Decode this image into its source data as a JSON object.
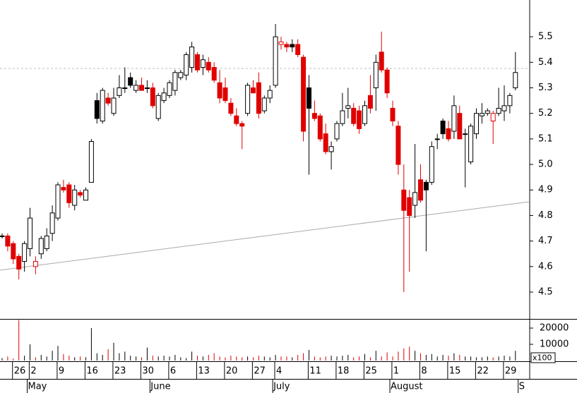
{
  "chart_data": [
    {
      "type": "candlestick",
      "ylim": [
        4.395,
        5.644
      ],
      "yticks": [
        4.5,
        4.6,
        4.7,
        4.8,
        4.9,
        {
          "value": 5,
          "label": "5.0"
        },
        5.1,
        5.2,
        5.3,
        5.4,
        5.5
      ],
      "up_color": "#000000",
      "down_color": "#e00000",
      "hline": 5.376,
      "trendline": [
        4.586,
        4.854
      ],
      "xticks": [
        {
          "value": 3,
          "label": "26"
        },
        {
          "value": 6,
          "label": "2"
        },
        {
          "value": 11,
          "label": "9"
        },
        {
          "value": 16,
          "label": "16"
        },
        {
          "value": 21,
          "label": "23"
        },
        {
          "value": 26,
          "label": "30"
        },
        {
          "value": 31,
          "label": "6"
        },
        {
          "value": 36,
          "label": "13"
        },
        {
          "value": 41,
          "label": "20"
        },
        {
          "value": 46,
          "label": "27"
        },
        {
          "value": 50,
          "label": "4"
        },
        {
          "value": 56,
          "label": "11"
        },
        {
          "value": 61,
          "label": "18"
        },
        {
          "value": 66,
          "label": "25"
        },
        {
          "value": 71,
          "label": "1"
        },
        {
          "value": 76,
          "label": "8"
        },
        {
          "value": 81,
          "label": "15"
        },
        {
          "value": 86,
          "label": "22"
        },
        {
          "value": 91,
          "label": "29"
        }
      ],
      "months": [
        {
          "value": 5,
          "label": "May"
        },
        {
          "value": 27,
          "label": "June"
        },
        {
          "value": 49,
          "label": "July"
        },
        {
          "value": 70,
          "label": "August"
        },
        {
          "value": 93,
          "label": "S"
        }
      ],
      "candles": [
        [
          4.72,
          4.73,
          4.71,
          4.72
        ],
        [
          4.72,
          4.73,
          4.66,
          4.68
        ],
        [
          4.69,
          4.7,
          4.61,
          4.63
        ],
        [
          4.64,
          4.65,
          4.55,
          4.59
        ],
        [
          4.62,
          4.7,
          4.58,
          4.69
        ],
        [
          4.67,
          4.83,
          4.64,
          4.79
        ],
        [
          4.6,
          4.64,
          4.57,
          4.62
        ],
        [
          4.65,
          4.72,
          4.63,
          4.71
        ],
        [
          4.67,
          4.75,
          4.66,
          4.72
        ],
        [
          4.73,
          4.84,
          4.7,
          4.81
        ],
        [
          4.79,
          4.93,
          4.78,
          4.92
        ],
        [
          4.91,
          4.94,
          4.89,
          4.9
        ],
        [
          4.92,
          4.93,
          4.83,
          4.85
        ],
        [
          4.84,
          4.92,
          4.82,
          4.9
        ],
        [
          4.89,
          4.9,
          4.87,
          4.88
        ],
        [
          4.86,
          4.91,
          4.86,
          4.9
        ],
        [
          4.93,
          5.1,
          4.93,
          5.09
        ],
        [
          5.25,
          5.28,
          5.16,
          5.18
        ],
        [
          5.17,
          5.3,
          5.16,
          5.29
        ],
        [
          5.26,
          5.28,
          5.23,
          5.24
        ],
        [
          5.2,
          5.3,
          5.19,
          5.26
        ],
        [
          5.27,
          5.35,
          5.26,
          5.3
        ],
        [
          5.3,
          5.38,
          5.28,
          5.3
        ],
        [
          5.34,
          5.36,
          5.3,
          5.31
        ],
        [
          5.29,
          5.33,
          5.28,
          5.31
        ],
        [
          5.31,
          5.34,
          5.29,
          5.29
        ],
        [
          5.3,
          5.33,
          5.28,
          5.3
        ],
        [
          5.3,
          5.32,
          5.22,
          5.23
        ],
        [
          5.18,
          5.28,
          5.17,
          5.27
        ],
        [
          5.25,
          5.3,
          5.24,
          5.28
        ],
        [
          5.27,
          5.33,
          5.26,
          5.32
        ],
        [
          5.29,
          5.37,
          5.27,
          5.36
        ],
        [
          5.34,
          5.37,
          5.33,
          5.36
        ],
        [
          5.35,
          5.44,
          5.33,
          5.43
        ],
        [
          5.38,
          5.48,
          5.36,
          5.46
        ],
        [
          5.43,
          5.44,
          5.36,
          5.37
        ],
        [
          5.38,
          5.43,
          5.35,
          5.41
        ],
        [
          5.4,
          5.42,
          5.36,
          5.37
        ],
        [
          5.38,
          5.4,
          5.32,
          5.33
        ],
        [
          5.32,
          5.37,
          5.24,
          5.26
        ],
        [
          5.3,
          5.34,
          5.24,
          5.25
        ],
        [
          5.24,
          5.26,
          5.19,
          5.2
        ],
        [
          5.19,
          5.22,
          5.15,
          5.16
        ],
        [
          5.16,
          5.17,
          5.06,
          5.15
        ],
        [
          5.2,
          5.32,
          5.19,
          5.31
        ],
        [
          5.3,
          5.33,
          5.28,
          5.28
        ],
        [
          5.32,
          5.36,
          5.18,
          5.2
        ],
        [
          5.21,
          5.27,
          5.2,
          5.26
        ],
        [
          5.26,
          5.31,
          5.24,
          5.29
        ],
        [
          5.31,
          5.55,
          5.3,
          5.5
        ],
        [
          5.47,
          5.5,
          5.45,
          5.48
        ],
        [
          5.47,
          5.48,
          5.44,
          5.46
        ],
        [
          5.47,
          5.49,
          5.44,
          5.46
        ],
        [
          5.47,
          5.49,
          5.42,
          5.43
        ],
        [
          5.42,
          5.43,
          5.09,
          5.13
        ],
        [
          5.3,
          5.35,
          4.96,
          5.22
        ],
        [
          5.2,
          5.25,
          5.17,
          5.18
        ],
        [
          5.19,
          5.2,
          5.09,
          5.1
        ],
        [
          5.12,
          5.16,
          5.04,
          5.05
        ],
        [
          5.05,
          5.09,
          4.98,
          5.07
        ],
        [
          5.1,
          5.17,
          5.09,
          5.16
        ],
        [
          5.16,
          5.28,
          5.15,
          5.21
        ],
        [
          5.22,
          5.3,
          5.18,
          5.23
        ],
        [
          5.22,
          5.24,
          5.15,
          5.16
        ],
        [
          5.21,
          5.23,
          5.12,
          5.14
        ],
        [
          5.16,
          5.25,
          5.15,
          5.23
        ],
        [
          5.27,
          5.35,
          5.2,
          5.22
        ],
        [
          5.3,
          5.43,
          5.21,
          5.4
        ],
        [
          5.44,
          5.52,
          5.36,
          5.37
        ],
        [
          5.37,
          5.38,
          5.26,
          5.28
        ],
        [
          5.22,
          5.25,
          5.15,
          5.17
        ],
        [
          5.15,
          5.17,
          4.96,
          5.0
        ],
        [
          4.9,
          5.0,
          4.5,
          4.82
        ],
        [
          4.87,
          4.9,
          4.58,
          4.8
        ],
        [
          4.84,
          5.08,
          4.79,
          4.89
        ],
        [
          4.94,
          5.0,
          4.85,
          4.86
        ],
        [
          4.93,
          4.94,
          4.66,
          4.9
        ],
        [
          4.93,
          5.09,
          4.92,
          5.07
        ],
        [
          5.1,
          5.12,
          5.06,
          5.1
        ],
        [
          5.17,
          5.18,
          5.1,
          5.12
        ],
        [
          5.14,
          5.17,
          5.09,
          5.1
        ],
        [
          5.13,
          5.27,
          5.1,
          5.23
        ],
        [
          5.2,
          5.23,
          5.1,
          5.1
        ],
        [
          5.12,
          5.14,
          4.91,
          5.12
        ],
        [
          5.01,
          5.16,
          5.0,
          5.15
        ],
        [
          5.12,
          5.22,
          5.1,
          5.2
        ],
        [
          5.19,
          5.24,
          5.16,
          5.2
        ],
        [
          5.2,
          5.22,
          5.19,
          5.21
        ],
        [
          5.17,
          5.21,
          5.08,
          5.2
        ],
        [
          5.2,
          5.3,
          5.19,
          5.22
        ],
        [
          5.21,
          5.31,
          5.17,
          5.23
        ],
        [
          5.23,
          5.28,
          5.2,
          5.27
        ],
        [
          5.3,
          5.44,
          5.29,
          5.36
        ]
      ]
    },
    {
      "type": "volume",
      "ylim": [
        0,
        25217
      ],
      "yticks": [
        10000,
        20000
      ],
      "unit_label": "x100",
      "values": [
        1500,
        2500,
        1200,
        25000,
        3000,
        10000,
        2000,
        3500,
        2500,
        6000,
        9000,
        4000,
        3000,
        2000,
        2500,
        2000,
        20000,
        4500,
        3500,
        7000,
        11000,
        4500,
        5500,
        3000,
        2500,
        2000,
        8000,
        3000,
        2500,
        3000,
        2500,
        3500,
        2000,
        1500,
        5500,
        3000,
        2500,
        3500,
        4500,
        2500,
        2000,
        3000,
        2500,
        2000,
        2500,
        2000,
        3000,
        2500,
        2000,
        3500,
        2500,
        2500,
        2000,
        3500,
        4500,
        6500,
        2500,
        2000,
        2500,
        3000,
        2500,
        3000,
        3500,
        2000,
        2500,
        4000,
        2000,
        6000,
        2500,
        5000,
        2500,
        5500,
        7500,
        8500,
        6000,
        4500,
        3500,
        4000,
        2500,
        3500,
        3000,
        4500,
        3500,
        2500,
        2500,
        2000,
        2000,
        2500,
        2000,
        2500,
        3000,
        2500,
        6000
      ]
    }
  ]
}
